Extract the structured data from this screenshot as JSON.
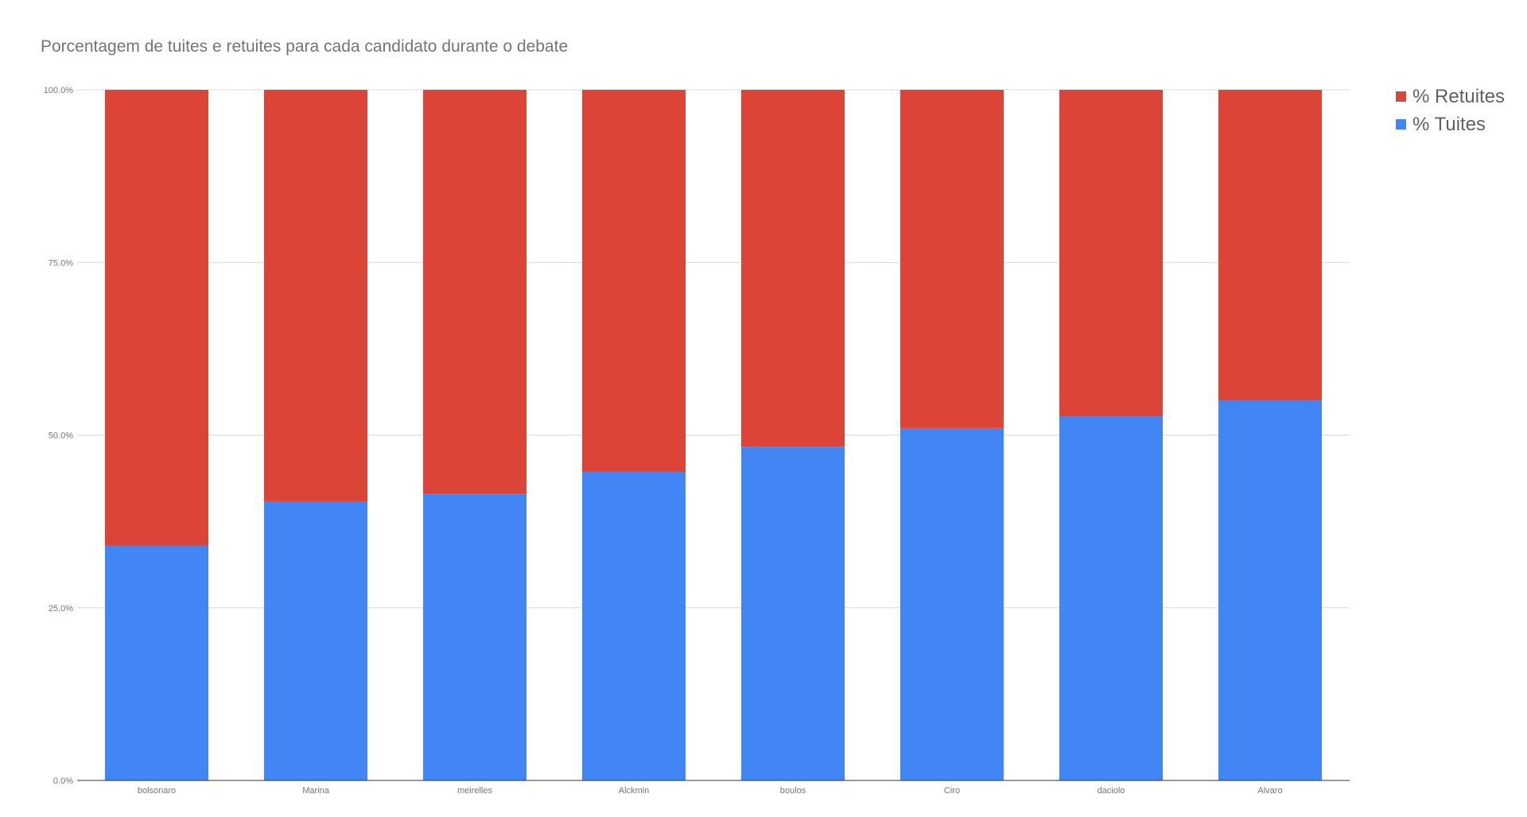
{
  "chart_data": {
    "type": "bar",
    "stacked": true,
    "title": "Porcentagem de tuites e retuites para cada candidato durante o debate",
    "xlabel": "",
    "ylabel": "",
    "ylim": [
      0,
      100
    ],
    "y_ticks": [
      "0.0%",
      "25.0%",
      "50.0%",
      "75.0%",
      "100.0%"
    ],
    "y_tick_values": [
      0,
      25,
      50,
      75,
      100
    ],
    "categories": [
      "bolsonaro",
      "Marina",
      "meirelles",
      "Alckmin",
      "boulos",
      "Ciro",
      "daciolo",
      "Alvaro"
    ],
    "series": [
      {
        "name": "% Tuites",
        "color": "#4285F4",
        "values": [
          34.0,
          40.4,
          41.5,
          44.7,
          48.3,
          51.0,
          52.7,
          55.0
        ]
      },
      {
        "name": "% Retuites",
        "color": "#DB4437",
        "values": [
          66.0,
          59.6,
          58.5,
          55.3,
          51.7,
          49.0,
          47.3,
          45.0
        ]
      }
    ],
    "grid": true,
    "legend_position": "right"
  },
  "legend": {
    "items": [
      {
        "label": "% Retuites",
        "color": "#DB4437"
      },
      {
        "label": "% Tuites",
        "color": "#4285F4"
      }
    ]
  }
}
